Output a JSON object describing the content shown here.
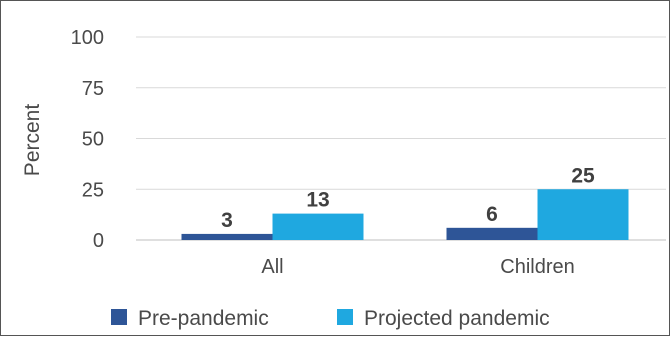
{
  "chart_data": {
    "type": "bar",
    "ylabel": "Percent",
    "ylim": [
      0,
      100
    ],
    "yticks": [
      0,
      25,
      50,
      75,
      100
    ],
    "grid": true,
    "legend_position": "bottom",
    "categories": [
      "All",
      "Children"
    ],
    "series": [
      {
        "name": "Pre-pandemic",
        "color": "#2E5597",
        "values": [
          3,
          6
        ]
      },
      {
        "name": "Projected pandemic",
        "color": "#1FA8E0",
        "values": [
          13,
          25
        ]
      }
    ]
  }
}
